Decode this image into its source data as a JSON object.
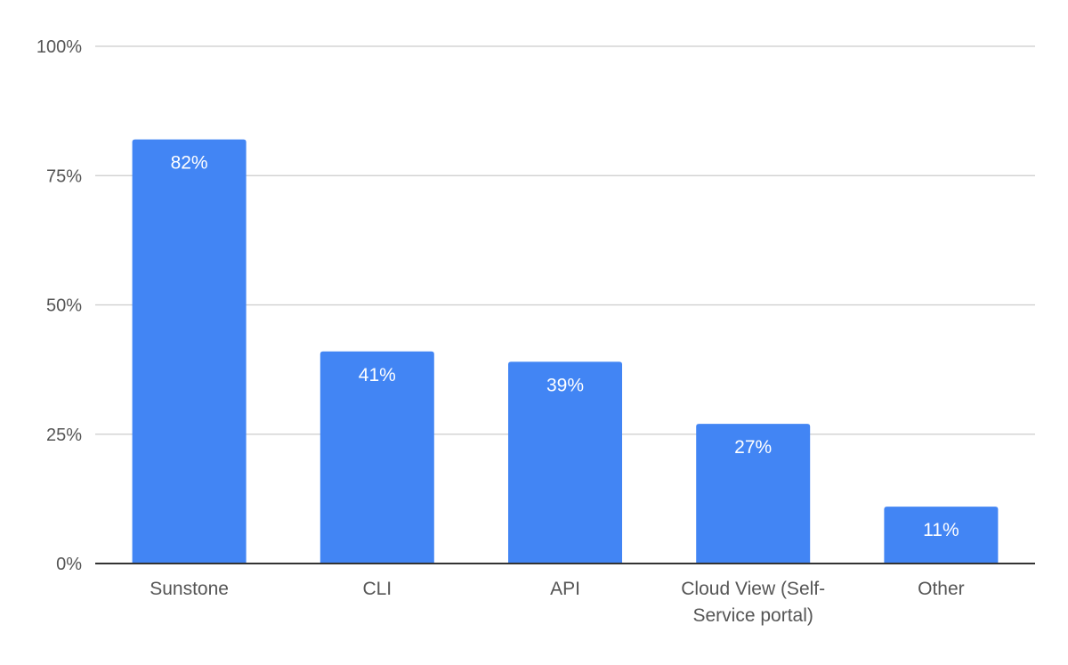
{
  "chart_data": {
    "type": "bar",
    "title": "",
    "xlabel": "",
    "ylabel": "",
    "categories": [
      "Sunstone",
      "CLI",
      "API",
      "Cloud View (Self-Service portal)",
      "Other"
    ],
    "category_lines": [
      [
        "Sunstone"
      ],
      [
        "CLI"
      ],
      [
        "API"
      ],
      [
        "Cloud View (Self-",
        "Service portal)"
      ],
      [
        "Other"
      ]
    ],
    "values": [
      82,
      41,
      39,
      27,
      11
    ],
    "data_labels": [
      "82%",
      "41%",
      "39%",
      "27%",
      "11%"
    ],
    "ylim": [
      0,
      100
    ],
    "yticks": [
      0,
      25,
      50,
      75,
      100
    ],
    "ytick_labels": [
      "0%",
      "25%",
      "50%",
      "75%",
      "100%"
    ],
    "grid": true,
    "legend": "none",
    "colors": {
      "bar": "#4285f4",
      "grid": "#cccccc",
      "axis": "#333333",
      "tick_text": "#555555",
      "data_label": "#ffffff"
    }
  }
}
